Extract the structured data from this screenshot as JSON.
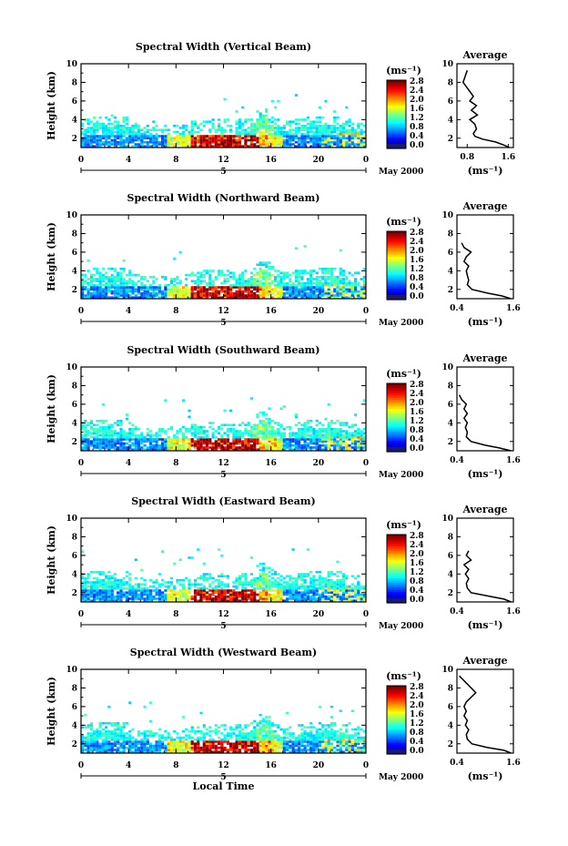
{
  "chart_data": [
    {
      "type": "heatmap",
      "title": "Spectral Width (Vertical Beam)",
      "ylabel": "Height (km)",
      "yticks": [
        "2",
        "4",
        "6",
        "8",
        "10"
      ],
      "xticks": [
        "0",
        "4",
        "8",
        "12",
        "16",
        "20",
        "0"
      ],
      "date_marker": "5",
      "date_label": "May 2000",
      "xlim": [
        0,
        24
      ],
      "ylim": [
        1,
        10
      ],
      "colorbar": {
        "unit": "(ms⁻¹)",
        "ticks": [
          "0.0",
          "0.4",
          "0.8",
          "1.2",
          "1.6",
          "2.0",
          "2.4",
          "2.8"
        ],
        "range": [
          0,
          2.8
        ]
      },
      "average_profile": {
        "title": "Average",
        "xlabel": "(ms⁻¹)",
        "xticks": [
          "0.8",
          "1.6"
        ],
        "xlim": [
          0.6,
          1.7
        ],
        "yticks": [
          "2",
          "4",
          "6",
          "8",
          "10"
        ],
        "height_km": [
          1.0,
          1.3,
          1.6,
          1.9,
          2.2,
          2.5,
          3.0,
          3.5,
          4.0,
          4.5,
          5.0,
          5.5,
          6.0,
          6.5,
          8.0,
          9.3
        ],
        "width_ms": [
          1.62,
          1.5,
          1.35,
          1.1,
          0.95,
          0.92,
          0.98,
          0.95,
          0.85,
          1.0,
          0.88,
          0.98,
          0.85,
          0.92,
          0.72,
          0.8
        ]
      }
    },
    {
      "type": "heatmap",
      "title": "Spectral Width (Northward Beam)",
      "ylabel": "Height (km)",
      "yticks": [
        "2",
        "4",
        "6",
        "8",
        "10"
      ],
      "xticks": [
        "0",
        "4",
        "8",
        "12",
        "16",
        "20",
        "0"
      ],
      "date_marker": "5",
      "date_label": "May 2000",
      "xlim": [
        0,
        24
      ],
      "ylim": [
        1,
        10
      ],
      "colorbar": {
        "unit": "(ms⁻¹)",
        "ticks": [
          "0.0",
          "0.4",
          "0.8",
          "1.2",
          "1.6",
          "2.0",
          "2.4",
          "2.8"
        ],
        "range": [
          0,
          2.8
        ]
      },
      "average_profile": {
        "title": "Average",
        "xlabel": "(ms⁻¹)",
        "xticks": [
          "0.4",
          "1.6"
        ],
        "xlim": [
          0.4,
          1.6
        ],
        "yticks": [
          "2",
          "4",
          "6",
          "8",
          "10"
        ],
        "height_km": [
          1.0,
          1.3,
          1.6,
          2.0,
          2.5,
          3.0,
          3.5,
          4.0,
          4.5,
          5.0,
          5.5,
          6.0,
          6.5,
          7.0
        ],
        "width_ms": [
          1.55,
          1.35,
          1.05,
          0.72,
          0.62,
          0.65,
          0.62,
          0.6,
          0.65,
          0.55,
          0.6,
          0.7,
          0.55,
          0.5
        ]
      }
    },
    {
      "type": "heatmap",
      "title": "Spectral Width (Southward Beam)",
      "ylabel": "Height (km)",
      "yticks": [
        "2",
        "4",
        "6",
        "8",
        "10"
      ],
      "xticks": [
        "0",
        "4",
        "8",
        "12",
        "16",
        "20",
        "0"
      ],
      "date_marker": "5",
      "date_label": "May 2000",
      "xlim": [
        0,
        24
      ],
      "ylim": [
        1,
        10
      ],
      "colorbar": {
        "unit": "(ms⁻¹)",
        "ticks": [
          "0.0",
          "0.4",
          "0.8",
          "1.2",
          "1.6",
          "2.0",
          "2.4",
          "2.8"
        ],
        "range": [
          0,
          2.8
        ]
      },
      "average_profile": {
        "title": "Average",
        "xlabel": "(ms⁻¹)",
        "xticks": [
          "0.4",
          "1.6"
        ],
        "xlim": [
          0.4,
          1.6
        ],
        "yticks": [
          "2",
          "4",
          "6",
          "8",
          "10"
        ],
        "height_km": [
          1.0,
          1.3,
          1.6,
          2.0,
          2.5,
          3.0,
          3.5,
          4.0,
          4.5,
          5.0,
          5.5,
          6.0,
          6.5,
          7.0
        ],
        "width_ms": [
          1.55,
          1.3,
          1.0,
          0.7,
          0.6,
          0.62,
          0.58,
          0.62,
          0.55,
          0.62,
          0.55,
          0.6,
          0.5,
          0.45
        ]
      }
    },
    {
      "type": "heatmap",
      "title": "Spectral Width (Eastward Beam)",
      "ylabel": "Height (km)",
      "yticks": [
        "2",
        "4",
        "6",
        "8",
        "10"
      ],
      "xticks": [
        "0",
        "4",
        "8",
        "12",
        "16",
        "20",
        "0"
      ],
      "date_marker": "5",
      "date_label": "May 2000",
      "xlim": [
        0,
        24
      ],
      "ylim": [
        1,
        10
      ],
      "colorbar": {
        "unit": "(ms⁻¹)",
        "ticks": [
          "0.0",
          "0.4",
          "0.8",
          "1.2",
          "1.6",
          "2.0",
          "2.4",
          "2.8"
        ],
        "range": [
          0,
          2.8
        ]
      },
      "average_profile": {
        "title": "Average",
        "xlabel": "(ms⁻¹)",
        "xticks": [
          "0.4",
          "1.6"
        ],
        "xlim": [
          0.4,
          1.6
        ],
        "yticks": [
          "2",
          "4",
          "6",
          "8",
          "10"
        ],
        "height_km": [
          1.0,
          1.3,
          1.6,
          2.0,
          2.5,
          3.0,
          3.5,
          4.0,
          4.5,
          5.0,
          5.5,
          6.0,
          6.5
        ],
        "width_ms": [
          1.55,
          1.4,
          1.1,
          0.7,
          0.62,
          0.6,
          0.65,
          0.58,
          0.65,
          0.55,
          0.7,
          0.6,
          0.65
        ]
      }
    },
    {
      "type": "heatmap",
      "title": "Spectral Width (Westward Beam)",
      "ylabel": "Height (km)",
      "yticks": [
        "2",
        "4",
        "6",
        "8",
        "10"
      ],
      "xticks": [
        "0",
        "4",
        "8",
        "12",
        "16",
        "20",
        "0"
      ],
      "date_marker": "5",
      "date_label": "May 2000",
      "xlabel": "Local Time",
      "xlim": [
        0,
        24
      ],
      "ylim": [
        1,
        10
      ],
      "colorbar": {
        "unit": "(ms⁻¹)",
        "ticks": [
          "0.0",
          "0.4",
          "0.8",
          "1.2",
          "1.6",
          "2.0",
          "2.4",
          "2.8"
        ],
        "range": [
          0,
          2.8
        ]
      },
      "average_profile": {
        "title": "Average",
        "xlabel": "(ms⁻¹)",
        "xticks": [
          "0.4",
          "1.6"
        ],
        "xlim": [
          0.4,
          1.6
        ],
        "yticks": [
          "2",
          "4",
          "6",
          "8",
          "10"
        ],
        "height_km": [
          1.0,
          1.3,
          1.6,
          2.0,
          2.5,
          3.0,
          3.5,
          4.0,
          4.5,
          5.0,
          5.5,
          6.0,
          6.5,
          7.5,
          9.3
        ],
        "width_ms": [
          1.55,
          1.4,
          1.05,
          0.72,
          0.62,
          0.6,
          0.65,
          0.58,
          0.62,
          0.55,
          0.6,
          0.55,
          0.6,
          0.8,
          0.45
        ]
      }
    }
  ]
}
